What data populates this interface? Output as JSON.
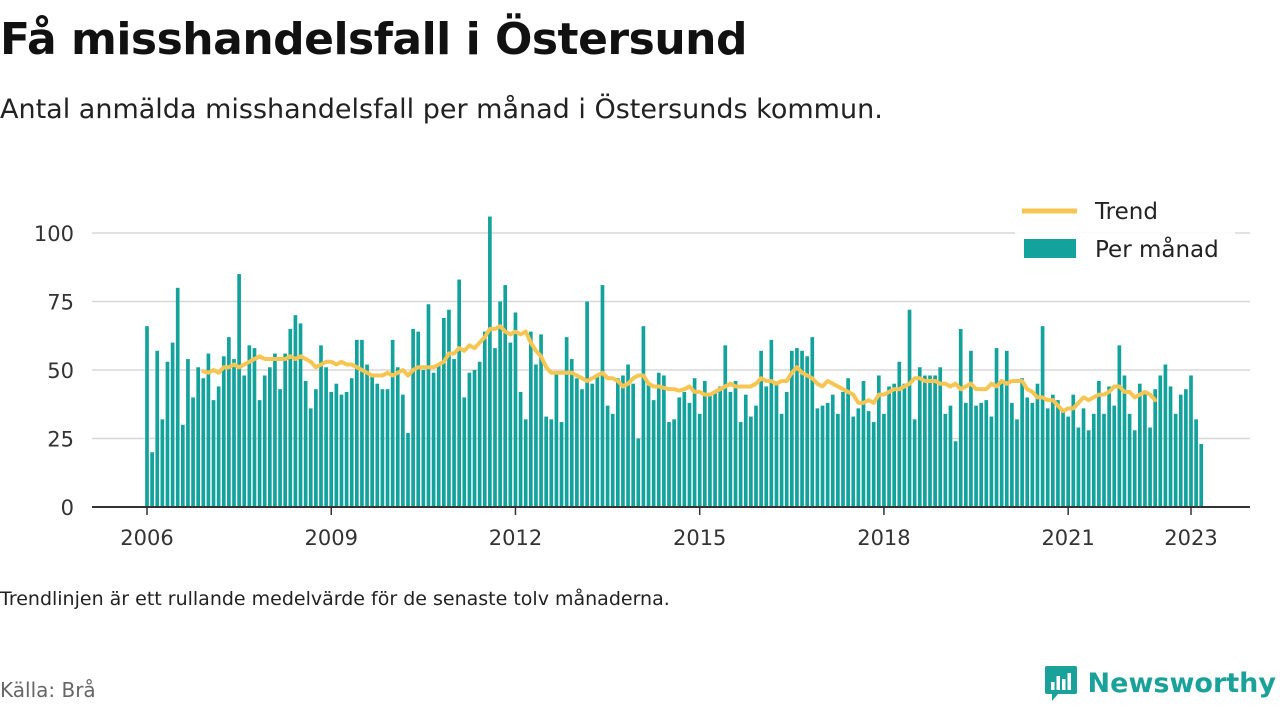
{
  "title": "Få misshandelsfall i Östersund",
  "subtitle": "Antal anmälda misshandelsfall per månad i Östersunds kommun.",
  "note": "Trendlinjen är ett rullande medelvärde för de senaste tolv månaderna.",
  "source": "Källa: Brå",
  "brand": {
    "name": "Newsworthy",
    "icon": "newsworthy-logo-icon"
  },
  "colors": {
    "bar": "#13a39c",
    "trend": "#f7c553",
    "grid": "#d8d8d8",
    "axis": "#333333",
    "brand": "#1aa19a"
  },
  "chart_data": {
    "type": "bar",
    "title": "Få misshandelsfall i Östersund",
    "xlabel": "",
    "ylabel": "",
    "ylim": [
      0,
      110
    ],
    "yticks": [
      0,
      25,
      50,
      75,
      100
    ],
    "xticks": [
      "2006",
      "2009",
      "2012",
      "2015",
      "2018",
      "2021",
      "2023"
    ],
    "x_start": "2006-01",
    "x_end": "2023-01",
    "grid": true,
    "legend_position": "top-right",
    "series": [
      {
        "name": "Per månad",
        "type": "bar",
        "values": [
          66,
          20,
          57,
          32,
          53,
          60,
          80,
          30,
          54,
          40,
          51,
          47,
          56,
          39,
          44,
          55,
          62,
          54,
          85,
          48,
          59,
          58,
          39,
          48,
          51,
          56,
          43,
          56,
          65,
          70,
          67,
          46,
          36,
          43,
          59,
          51,
          42,
          45,
          41,
          42,
          47,
          61,
          61,
          52,
          48,
          45,
          43,
          43,
          61,
          51,
          41,
          27,
          65,
          64,
          50,
          74,
          49,
          52,
          69,
          72,
          54,
          83,
          40,
          49,
          50,
          53,
          64,
          106,
          58,
          75,
          81,
          60,
          71,
          42,
          32,
          64,
          52,
          63,
          33,
          32,
          49,
          31,
          62,
          54,
          47,
          43,
          75,
          45,
          48,
          81,
          37,
          34,
          47,
          48,
          52,
          45,
          25,
          66,
          45,
          39,
          49,
          48,
          31,
          32,
          40,
          42,
          38,
          47,
          34,
          46,
          41,
          42,
          44,
          59,
          42,
          46,
          31,
          41,
          33,
          37,
          57,
          44,
          61,
          45,
          34,
          42,
          57,
          58,
          57,
          55,
          62,
          36,
          37,
          38,
          41,
          34,
          42,
          47,
          33,
          36,
          46,
          35,
          31,
          48,
          34,
          44,
          45,
          53,
          45,
          72,
          32,
          51,
          48,
          48,
          48,
          51,
          34,
          37,
          24,
          65,
          38,
          57,
          37,
          38,
          39,
          33,
          58,
          46,
          57,
          38,
          32,
          47,
          40,
          38,
          45,
          66,
          36,
          41,
          39,
          35,
          33,
          41,
          29,
          36,
          28,
          34,
          46,
          34,
          44,
          37,
          59,
          48,
          34,
          28,
          45,
          42,
          29,
          43,
          48,
          52,
          44,
          34,
          41,
          43,
          48,
          32,
          23
        ]
      },
      {
        "name": "Trend",
        "type": "line",
        "start_index": 11,
        "values": [
          49.5,
          49.0,
          50.0,
          49.0,
          51.0,
          51.0,
          52.0,
          51.0,
          52.0,
          53.0,
          54.0,
          55.0,
          54.0,
          54.0,
          54.0,
          54.0,
          54.0,
          55.0,
          54.0,
          55.0,
          54.0,
          53.0,
          51.0,
          52.0,
          53.0,
          53.0,
          52.0,
          53.0,
          52.0,
          52.0,
          51.0,
          50.0,
          49.0,
          48.0,
          48.0,
          48.0,
          49.0,
          48.0,
          49.0,
          50.0,
          48.0,
          50.0,
          51.0,
          51.0,
          51.0,
          51.0,
          52.0,
          53.0,
          56.0,
          56.0,
          58.0,
          57.0,
          59.0,
          58.0,
          60.0,
          62.0,
          65.0,
          65.0,
          66.0,
          64.0,
          63.0,
          64.0,
          63.0,
          64.0,
          60.0,
          57.0,
          55.0,
          51.0,
          49.0,
          49.0,
          49.0,
          49.0,
          49.0,
          48.0,
          47.0,
          46.0,
          47.0,
          48.0,
          49.0,
          47.0,
          47.0,
          46.0,
          44.0,
          45.0,
          47.0,
          48.0,
          48.0,
          45.0,
          44.0,
          44.0,
          43.5,
          43.0,
          43.0,
          42.5,
          43.0,
          44.0,
          42.0,
          42.0,
          41.0,
          41.0,
          42.0,
          43.0,
          44.0,
          45.0,
          44.0,
          44.0,
          44.0,
          44.0,
          45.0,
          47.0,
          46.0,
          46.0,
          45.0,
          46.0,
          46.0,
          49.0,
          51.0,
          49.0,
          48.0,
          47.0,
          45.0,
          44.0,
          46.0,
          45.0,
          44.0,
          43.0,
          42.0,
          41.0,
          38.0,
          38.0,
          39.0,
          38.0,
          41.0,
          41.0,
          42.0,
          43.0,
          43.0,
          44.0,
          45.0,
          47.0,
          47.0,
          46.0,
          46.0,
          46.0,
          45.0,
          45.0,
          44.0,
          45.0,
          43.0,
          44.0,
          45.0,
          43.0,
          43.0,
          43.0,
          45.0,
          44.0,
          46.0,
          45.0,
          46.0,
          46.0,
          46.0,
          43.0,
          42.0,
          40.0,
          40.0,
          39.0,
          39.0,
          37.0,
          35.0,
          36.0,
          36.0,
          38.0,
          40.0,
          39.0,
          40.0,
          41.0,
          41.0,
          42.0,
          44.0,
          44.0,
          42.0,
          42.0,
          40.0,
          41.0,
          42.0,
          41.0,
          39.0
        ]
      }
    ]
  }
}
